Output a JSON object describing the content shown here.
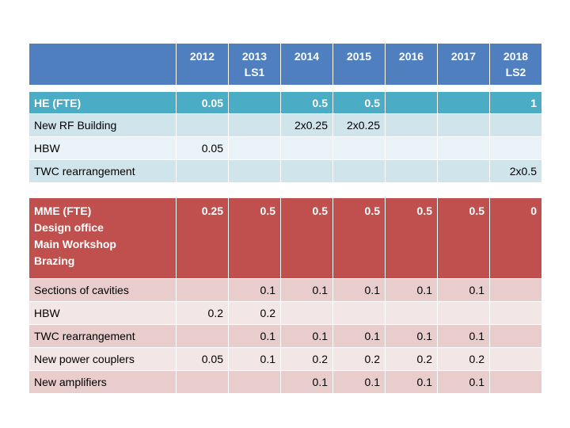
{
  "header": {
    "first_cell": "",
    "years": [
      {
        "line1": "2012",
        "line2": ""
      },
      {
        "line1": "2013",
        "line2": "LS1"
      },
      {
        "line1": "2014",
        "line2": ""
      },
      {
        "line1": "2015",
        "line2": ""
      },
      {
        "line1": "2016",
        "line2": ""
      },
      {
        "line1": "2017",
        "line2": ""
      },
      {
        "line1": "2018",
        "line2": "LS2"
      }
    ]
  },
  "he": {
    "header": {
      "label": "HE (FTE)",
      "values": [
        "0.05",
        "",
        "0.5",
        "0.5",
        "",
        "",
        "1"
      ]
    },
    "rows": [
      {
        "label": "New RF Building",
        "values": [
          "",
          "",
          "2x0.25",
          "2x0.25",
          "",
          "",
          ""
        ]
      },
      {
        "label": "HBW",
        "values": [
          "0.05",
          "",
          "",
          "",
          "",
          "",
          ""
        ]
      },
      {
        "label": "TWC rearrangement",
        "values": [
          "",
          "",
          "",
          "",
          "",
          "",
          "2x0.5"
        ]
      }
    ]
  },
  "mme": {
    "header": {
      "lines": [
        "MME (FTE)",
        "Design office",
        "Main Workshop",
        "Brazing"
      ],
      "values": [
        "0.25",
        "0.5",
        "0.5",
        "0.5",
        "0.5",
        "0.5",
        "0"
      ]
    },
    "rows": [
      {
        "label": "Sections of cavities",
        "values": [
          "",
          "0.1",
          "0.1",
          "0.1",
          "0.1",
          "0.1",
          ""
        ]
      },
      {
        "label": "HBW",
        "values": [
          "0.2",
          "0.2",
          "",
          "",
          "",
          "",
          ""
        ]
      },
      {
        "label": "TWC rearrangement",
        "values": [
          "",
          "0.1",
          "0.1",
          "0.1",
          "0.1",
          "0.1",
          ""
        ]
      },
      {
        "label": "New power couplers",
        "values": [
          "0.05",
          "0.1",
          "0.2",
          "0.2",
          "0.2",
          "0.2",
          ""
        ]
      },
      {
        "label": "New amplifiers",
        "values": [
          "",
          "",
          "0.1",
          "0.1",
          "0.1",
          "0.1",
          ""
        ]
      }
    ]
  }
}
